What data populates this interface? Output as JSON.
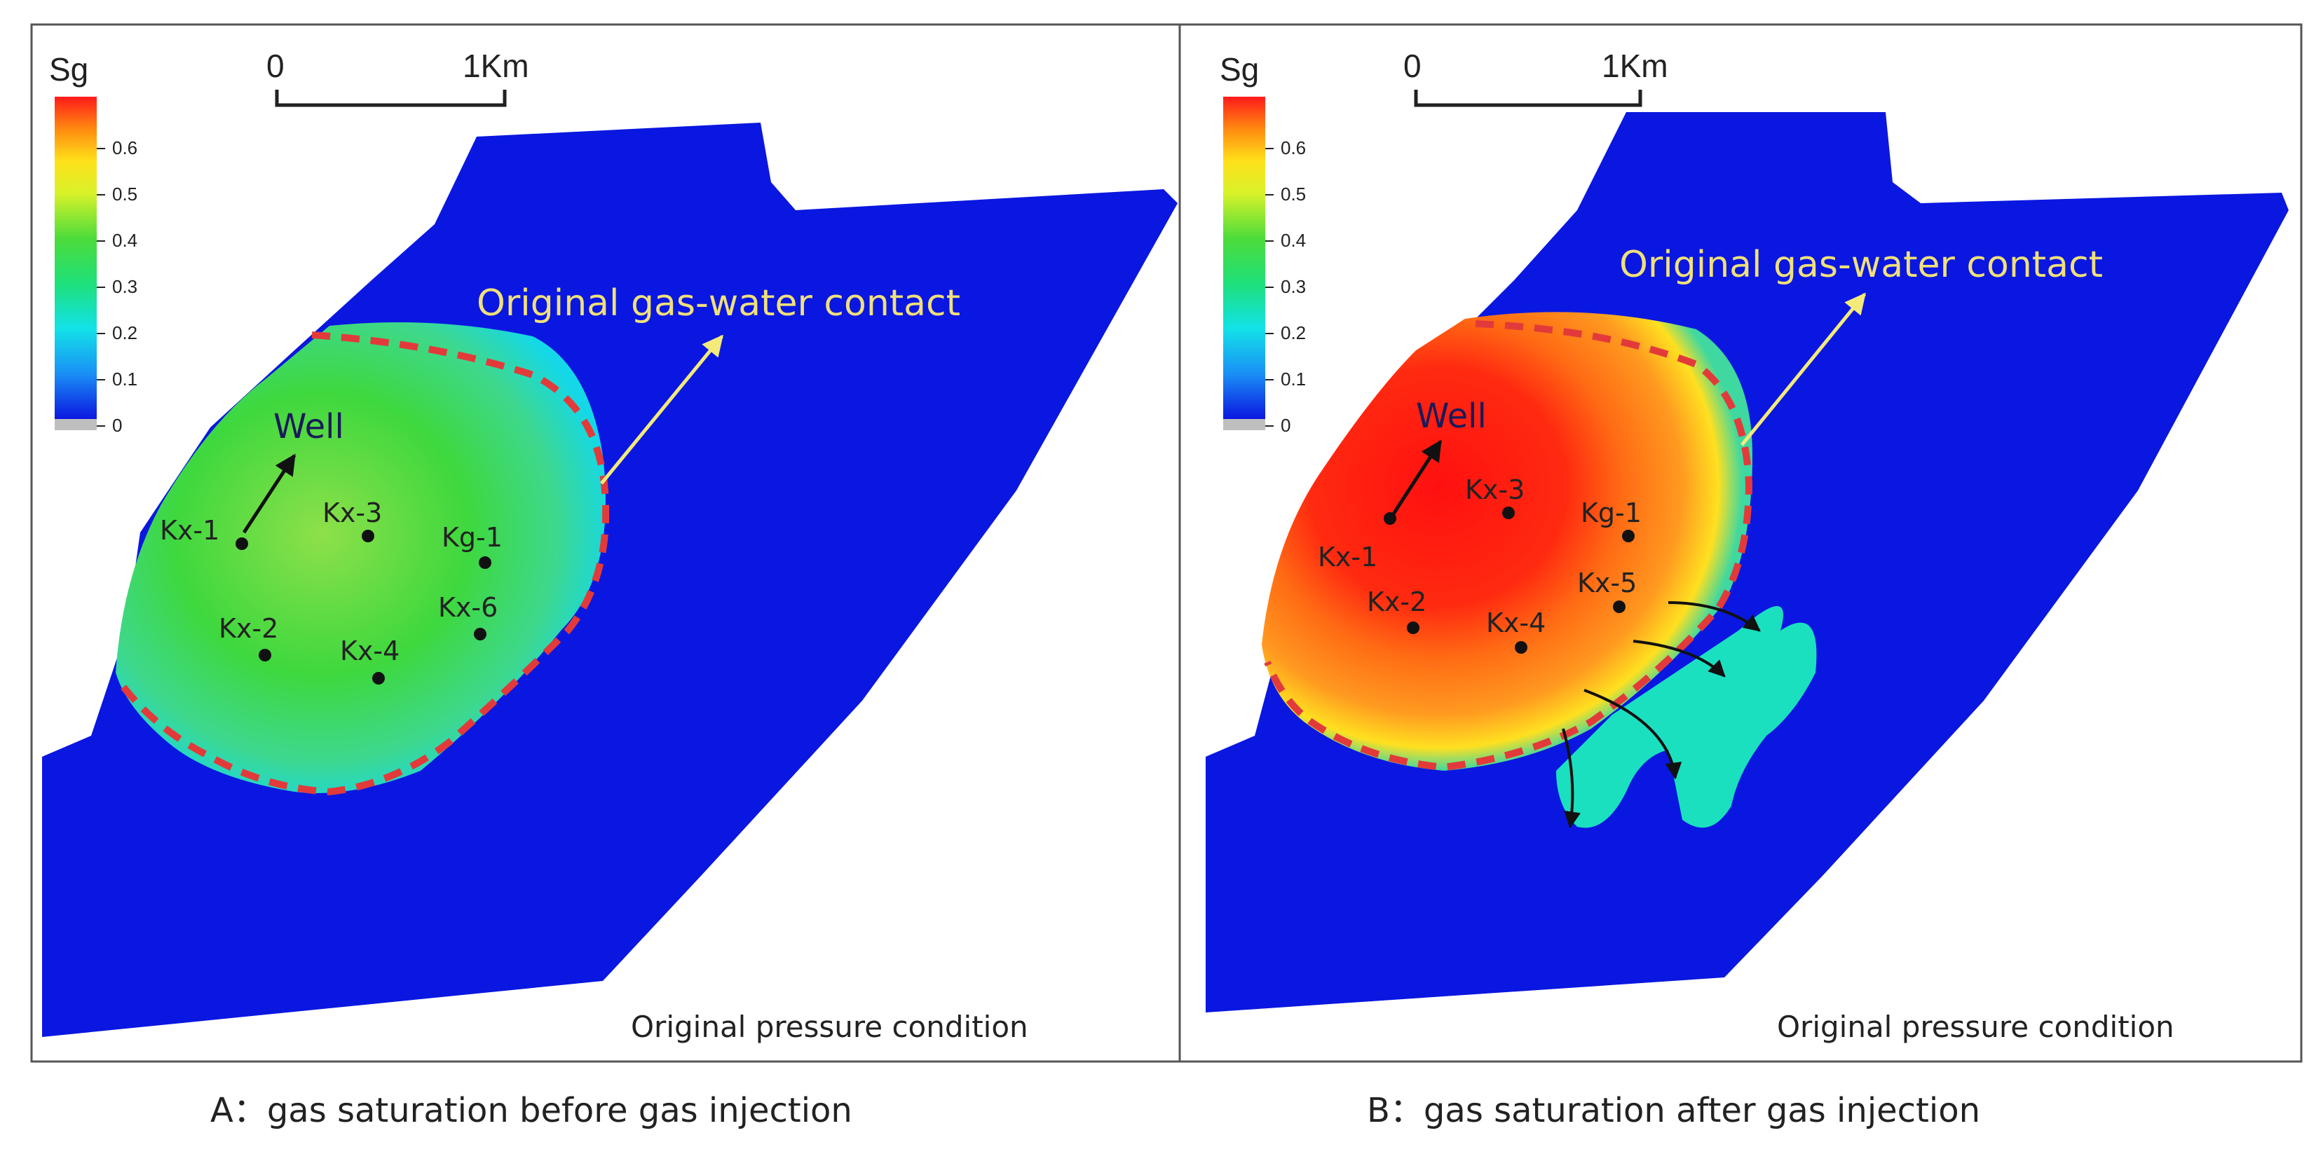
{
  "panels": [
    {
      "id": "A",
      "caption": "A：gas saturation before gas injection",
      "colorbar": {
        "title": "Sg",
        "ticks": [
          "0.6",
          "0.5",
          "0.4",
          "0.3",
          "0.2",
          "0.1",
          "0"
        ],
        "min": 0,
        "max": 0.7
      },
      "scalebar": {
        "start_label": "0",
        "end_label": "1Km"
      },
      "annotation": "Original gas-water contact",
      "well_callout": "Well",
      "wells": [
        "Kx-1",
        "Kx-3",
        "Kg-1",
        "Kx-2",
        "Kx-6",
        "Kx-4"
      ],
      "condition": "Original pressure condition"
    },
    {
      "id": "B",
      "caption": "B：gas saturation after gas injection",
      "colorbar": {
        "title": "Sg",
        "ticks": [
          "0.6",
          "0.5",
          "0.4",
          "0.3",
          "0.2",
          "0.1",
          "0"
        ],
        "min": 0,
        "max": 0.7
      },
      "scalebar": {
        "start_label": "0",
        "end_label": "1Km"
      },
      "annotation": "Original gas-water contact",
      "well_callout": "Well",
      "wells": [
        "Kx-3",
        "Kg-1",
        "Kx-1",
        "Kx-5",
        "Kx-2",
        "Kx-4"
      ],
      "condition": "Original pressure condition"
    }
  ],
  "colors": {
    "reservoir": "#0a17e0",
    "contact_line": "#e23a3a",
    "annotation_text": "#f0e07a",
    "arrow_yellow": "#f3ea7a",
    "frame": "#555555"
  }
}
